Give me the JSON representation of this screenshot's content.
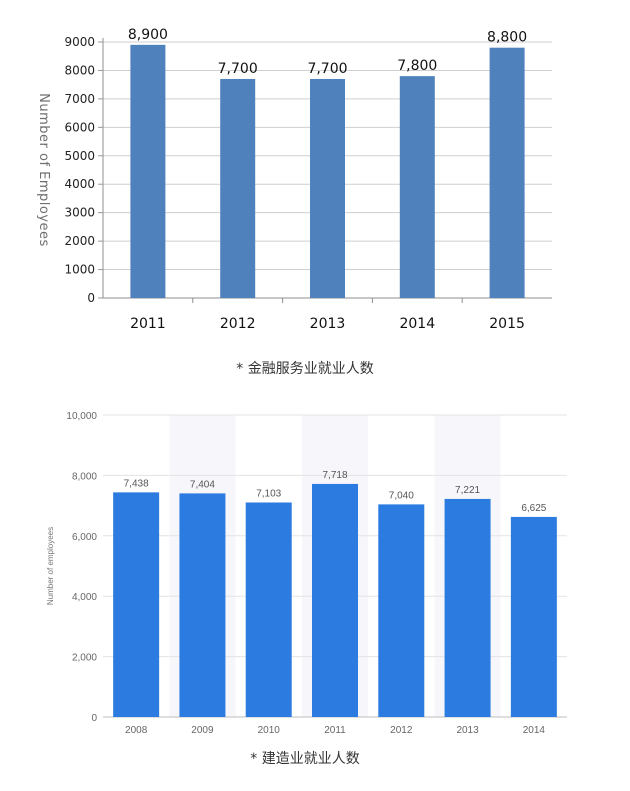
{
  "chart_data": [
    {
      "type": "bar",
      "categories": [
        "2011",
        "2012",
        "2013",
        "2014",
        "2015"
      ],
      "values": [
        8900,
        7700,
        7700,
        7800,
        8800
      ],
      "data_labels": [
        "8,900",
        "7,700",
        "7,700",
        "7,800",
        "8,800"
      ],
      "title": "",
      "xlabel": "",
      "ylabel": "Number of Employees",
      "ylim": [
        0,
        9000
      ],
      "yticks": [
        0,
        1000,
        2000,
        3000,
        4000,
        5000,
        6000,
        7000,
        8000,
        9000
      ],
      "ytick_labels": [
        "0",
        "1000",
        "2000",
        "3000",
        "4000",
        "5000",
        "6000",
        "7000",
        "8000",
        "9000"
      ],
      "grid": true,
      "bar_color": "#4f81bd",
      "caption": "* 金融服务业就业人数"
    },
    {
      "type": "bar",
      "categories": [
        "2008",
        "2009",
        "2010",
        "2011",
        "2012",
        "2013",
        "2014"
      ],
      "values": [
        7438,
        7404,
        7103,
        7718,
        7040,
        7221,
        6625
      ],
      "data_labels": [
        "7,438",
        "7,404",
        "7,103",
        "7,718",
        "7,040",
        "7,221",
        "6,625"
      ],
      "title": "",
      "xlabel": "",
      "ylabel": "Number of employees",
      "ylim": [
        0,
        10000
      ],
      "yticks": [
        0,
        2000,
        4000,
        6000,
        8000,
        10000
      ],
      "ytick_labels": [
        "0",
        "2,000",
        "4,000",
        "6,000",
        "8,000",
        "10,000"
      ],
      "grid": true,
      "bar_color": "#2c7be0",
      "caption": "* 建造业就业人数"
    }
  ]
}
